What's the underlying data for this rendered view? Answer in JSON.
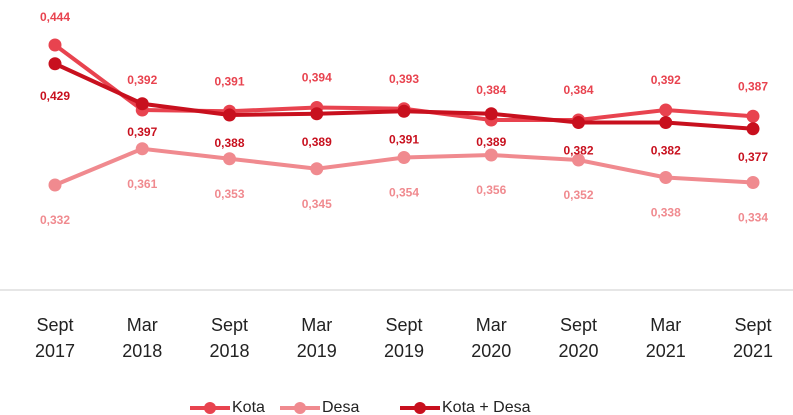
{
  "chart_data": {
    "type": "line",
    "categories": [
      "Sept 2017",
      "Mar 2018",
      "Sept 2018",
      "Mar 2019",
      "Sept 2019",
      "Mar 2020",
      "Sept 2020",
      "Mar 2021",
      "Sept 2021"
    ],
    "ylim": [
      0.248,
      0.48
    ],
    "series": [
      {
        "name": "Kota",
        "color": "#e8434f",
        "values": [
          0.444,
          0.392,
          0.391,
          0.394,
          0.393,
          0.384,
          0.384,
          0.392,
          0.387
        ],
        "value_labels": [
          "0,444",
          "0,392",
          "0,391",
          "0,394",
          "0,393",
          "0,384",
          "0,384",
          "0,392",
          "0,387"
        ]
      },
      {
        "name": "Desa",
        "color": "#f08a8f",
        "values": [
          0.332,
          0.361,
          0.353,
          0.345,
          0.354,
          0.356,
          0.352,
          0.338,
          0.334
        ],
        "value_labels": [
          "0,332",
          "0,361",
          "0,353",
          "0,345",
          "0,354",
          "0,356",
          "0,352",
          "0,338",
          "0,334"
        ]
      },
      {
        "name": "Kota + Desa",
        "color": "#c8101e",
        "values": [
          0.429,
          0.397,
          0.388,
          0.389,
          0.391,
          0.389,
          0.382,
          0.382,
          0.377
        ],
        "value_labels": [
          "0,429",
          "0,397",
          "0,388",
          "0,389",
          "0,391",
          "0,389",
          "0,382",
          "0,382",
          "0,377"
        ]
      }
    ]
  }
}
